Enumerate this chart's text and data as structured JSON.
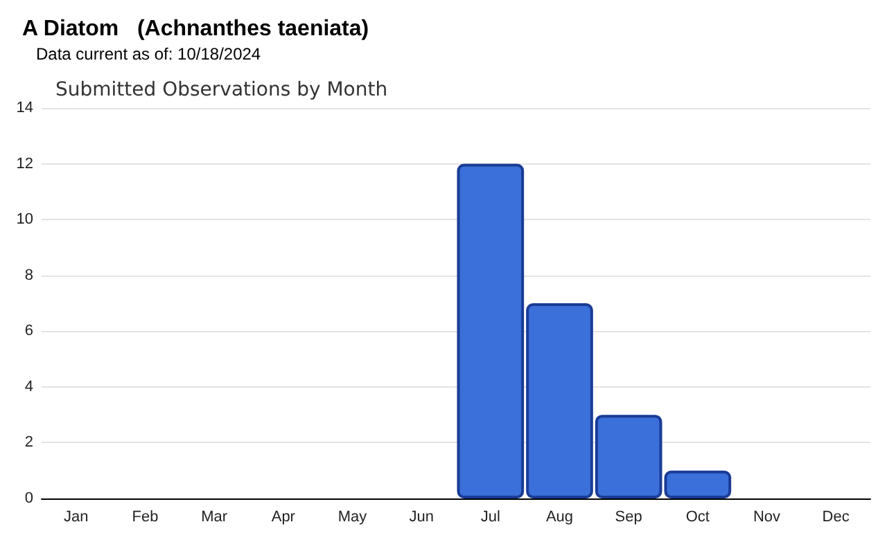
{
  "chart_data": {
    "type": "bar",
    "title": "A Diatom   (Achnanthes taeniata)",
    "subtitle": "Data current as of: 10/18/2024",
    "annotations": [
      "Submitted Observations by Month"
    ],
    "categories": [
      "Jan",
      "Feb",
      "Mar",
      "Apr",
      "May",
      "Jun",
      "Jul",
      "Aug",
      "Sep",
      "Oct",
      "Nov",
      "Dec"
    ],
    "values": [
      0,
      0,
      0,
      0,
      0,
      0,
      12,
      7,
      3,
      1,
      0,
      0
    ],
    "color": "#3b6fd9",
    "ylim": [
      0,
      14
    ],
    "yticks": [
      0,
      2,
      4,
      6,
      8,
      10,
      12,
      14
    ],
    "grid": "y"
  }
}
